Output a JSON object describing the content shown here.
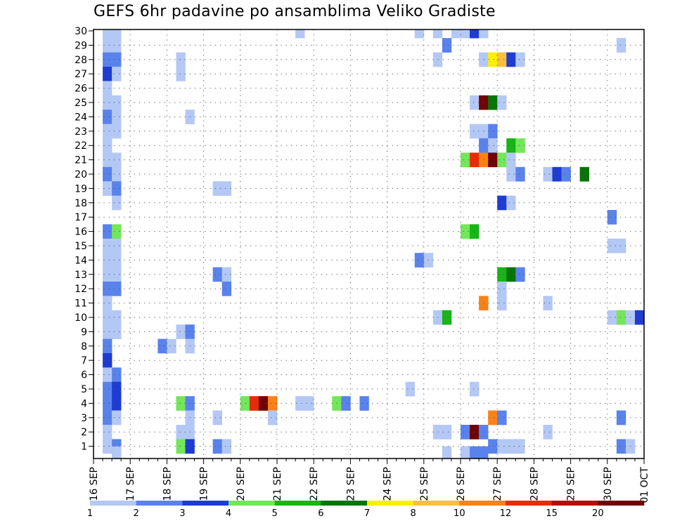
{
  "chart_data": {
    "type": "heatmap",
    "title": "GEFS 6hr padavine po ansamblima Veliko Gradiste",
    "xlabel": "",
    "ylabel": "",
    "x_tick_labels": [
      "16 SEP",
      "17 SEP",
      "18 SEP",
      "19 SEP",
      "20 SEP",
      "21 SEP",
      "22 SEP",
      "23 SEP",
      "24 SEP",
      "25 SEP",
      "26 SEP",
      "27 SEP",
      "28 SEP",
      "29 SEP",
      "30 SEP",
      "01 OCT"
    ],
    "y_tick_labels": [
      "1",
      "2",
      "3",
      "4",
      "5",
      "6",
      "7",
      "8",
      "9",
      "10",
      "11",
      "12",
      "13",
      "14",
      "15",
      "16",
      "17",
      "18",
      "19",
      "20",
      "21",
      "22",
      "23",
      "24",
      "25",
      "26",
      "27",
      "28",
      "29",
      "30"
    ],
    "x_range_days": [
      0,
      15
    ],
    "y_range": [
      0.5,
      30
    ],
    "grid": "dotted",
    "colorbar": {
      "labels": [
        "1",
        "2",
        "3",
        "4",
        "5",
        "6",
        "7",
        "8",
        "10",
        "12",
        "15",
        "20"
      ],
      "colors": [
        "#b4c8f5",
        "#5a82ec",
        "#1e3cd2",
        "#74e65a",
        "#18b418",
        "#087408",
        "#f8f000",
        "#f8c040",
        "#f88218",
        "#e82c08",
        "#b40c0c",
        "#6e0404"
      ]
    },
    "note_units": "mm per 6h; x = days since 16 SEP 00Z, width 0.25; y = ensemble member",
    "cells": [
      {
        "x": 0.25,
        "y": 30,
        "c": 0
      },
      {
        "x": 0.5,
        "y": 30,
        "c": 0
      },
      {
        "x": 5.5,
        "y": 30,
        "c": 0
      },
      {
        "x": 8.75,
        "y": 30,
        "c": 0
      },
      {
        "x": 9.25,
        "y": 30,
        "c": 0
      },
      {
        "x": 9.75,
        "y": 30,
        "c": 0
      },
      {
        "x": 10,
        "y": 30,
        "c": 0
      },
      {
        "x": 10.25,
        "y": 30,
        "c": 2
      },
      {
        "x": 10.5,
        "y": 30,
        "c": 0
      },
      {
        "x": 0.25,
        "y": 29,
        "c": 0
      },
      {
        "x": 0.5,
        "y": 29,
        "c": 0
      },
      {
        "x": 9.5,
        "y": 29,
        "c": 1
      },
      {
        "x": 14.25,
        "y": 29,
        "c": 0
      },
      {
        "x": 0.25,
        "y": 28,
        "c": 1
      },
      {
        "x": 0.5,
        "y": 28,
        "c": 1
      },
      {
        "x": 2.25,
        "y": 28,
        "c": 0
      },
      {
        "x": 9.25,
        "y": 28,
        "c": 0
      },
      {
        "x": 10.5,
        "y": 28,
        "c": 0
      },
      {
        "x": 10.75,
        "y": 28,
        "c": 6
      },
      {
        "x": 11,
        "y": 28,
        "c": 7
      },
      {
        "x": 11.25,
        "y": 28,
        "c": 2
      },
      {
        "x": 11.5,
        "y": 28,
        "c": 0
      },
      {
        "x": 0.25,
        "y": 27,
        "c": 2
      },
      {
        "x": 0.5,
        "y": 27,
        "c": 0
      },
      {
        "x": 2.25,
        "y": 27,
        "c": 0
      },
      {
        "x": 0.25,
        "y": 26,
        "c": 0
      },
      {
        "x": 0.25,
        "y": 25,
        "c": 0
      },
      {
        "x": 0.5,
        "y": 25,
        "c": 0
      },
      {
        "x": 10.25,
        "y": 25,
        "c": 0
      },
      {
        "x": 10.5,
        "y": 25,
        "c": 11
      },
      {
        "x": 10.75,
        "y": 25,
        "c": 5
      },
      {
        "x": 11,
        "y": 25,
        "c": 0
      },
      {
        "x": 0.25,
        "y": 24,
        "c": 1
      },
      {
        "x": 0.5,
        "y": 24,
        "c": 0
      },
      {
        "x": 2.5,
        "y": 24,
        "c": 0
      },
      {
        "x": 0.25,
        "y": 23,
        "c": 0
      },
      {
        "x": 0.5,
        "y": 23,
        "c": 0
      },
      {
        "x": 10.25,
        "y": 23,
        "c": 0
      },
      {
        "x": 10.5,
        "y": 23,
        "c": 0
      },
      {
        "x": 10.75,
        "y": 23,
        "c": 1
      },
      {
        "x": 0.25,
        "y": 22,
        "c": 0
      },
      {
        "x": 10.5,
        "y": 22,
        "c": 1
      },
      {
        "x": 10.75,
        "y": 22,
        "c": 0
      },
      {
        "x": 11.25,
        "y": 22,
        "c": 4
      },
      {
        "x": 11.5,
        "y": 22,
        "c": 3
      },
      {
        "x": 0.25,
        "y": 21,
        "c": 0
      },
      {
        "x": 0.5,
        "y": 21,
        "c": 0
      },
      {
        "x": 10,
        "y": 21,
        "c": 3
      },
      {
        "x": 10.25,
        "y": 21,
        "c": 9
      },
      {
        "x": 10.5,
        "y": 21,
        "c": 8
      },
      {
        "x": 10.75,
        "y": 21,
        "c": 11
      },
      {
        "x": 11,
        "y": 21,
        "c": 3
      },
      {
        "x": 11.25,
        "y": 21,
        "c": 0
      },
      {
        "x": 0.25,
        "y": 20,
        "c": 1
      },
      {
        "x": 0.5,
        "y": 20,
        "c": 0
      },
      {
        "x": 11.25,
        "y": 20,
        "c": 0
      },
      {
        "x": 11.5,
        "y": 20,
        "c": 1
      },
      {
        "x": 12.25,
        "y": 20,
        "c": 0
      },
      {
        "x": 12.5,
        "y": 20,
        "c": 2
      },
      {
        "x": 12.75,
        "y": 20,
        "c": 1
      },
      {
        "x": 13.25,
        "y": 20,
        "c": 5
      },
      {
        "x": 0.25,
        "y": 19,
        "c": 0
      },
      {
        "x": 0.5,
        "y": 19,
        "c": 1
      },
      {
        "x": 3.25,
        "y": 19,
        "c": 0
      },
      {
        "x": 3.5,
        "y": 19,
        "c": 0
      },
      {
        "x": 0.5,
        "y": 18,
        "c": 0
      },
      {
        "x": 11,
        "y": 18,
        "c": 2
      },
      {
        "x": 11.25,
        "y": 18,
        "c": 0
      },
      {
        "x": 14,
        "y": 17,
        "c": 1
      },
      {
        "x": 0.25,
        "y": 16,
        "c": 1
      },
      {
        "x": 0.5,
        "y": 16,
        "c": 3
      },
      {
        "x": 10,
        "y": 16,
        "c": 3
      },
      {
        "x": 10.25,
        "y": 16,
        "c": 4
      },
      {
        "x": 0.25,
        "y": 15,
        "c": 0
      },
      {
        "x": 0.5,
        "y": 15,
        "c": 0
      },
      {
        "x": 14,
        "y": 15,
        "c": 0
      },
      {
        "x": 14.25,
        "y": 15,
        "c": 0
      },
      {
        "x": 0.25,
        "y": 14,
        "c": 0
      },
      {
        "x": 0.5,
        "y": 14,
        "c": 0
      },
      {
        "x": 8.75,
        "y": 14,
        "c": 1
      },
      {
        "x": 9,
        "y": 14,
        "c": 0
      },
      {
        "x": 0.25,
        "y": 13,
        "c": 0
      },
      {
        "x": 0.5,
        "y": 13,
        "c": 0
      },
      {
        "x": 3.25,
        "y": 13,
        "c": 1
      },
      {
        "x": 3.5,
        "y": 13,
        "c": 0
      },
      {
        "x": 11,
        "y": 13,
        "c": 4
      },
      {
        "x": 11.25,
        "y": 13,
        "c": 5
      },
      {
        "x": 11.5,
        "y": 13,
        "c": 1
      },
      {
        "x": 0.25,
        "y": 12,
        "c": 1
      },
      {
        "x": 0.5,
        "y": 12,
        "c": 1
      },
      {
        "x": 3.5,
        "y": 12,
        "c": 1
      },
      {
        "x": 11,
        "y": 12,
        "c": 0
      },
      {
        "x": 0.25,
        "y": 11,
        "c": 0
      },
      {
        "x": 10.5,
        "y": 11,
        "c": 8
      },
      {
        "x": 11,
        "y": 11,
        "c": 0
      },
      {
        "x": 12.25,
        "y": 11,
        "c": 0
      },
      {
        "x": 0.25,
        "y": 10,
        "c": 0
      },
      {
        "x": 0.5,
        "y": 10,
        "c": 0
      },
      {
        "x": 9.25,
        "y": 10,
        "c": 0
      },
      {
        "x": 9.5,
        "y": 10,
        "c": 4
      },
      {
        "x": 14,
        "y": 10,
        "c": 0
      },
      {
        "x": 14.25,
        "y": 10,
        "c": 3
      },
      {
        "x": 14.5,
        "y": 10,
        "c": 0
      },
      {
        "x": 14.75,
        "y": 10,
        "c": 2
      },
      {
        "x": 0.25,
        "y": 9,
        "c": 0
      },
      {
        "x": 0.5,
        "y": 9,
        "c": 0
      },
      {
        "x": 2.25,
        "y": 9,
        "c": 0
      },
      {
        "x": 2.5,
        "y": 9,
        "c": 1
      },
      {
        "x": 0.25,
        "y": 8,
        "c": 1
      },
      {
        "x": 1.75,
        "y": 8,
        "c": 1
      },
      {
        "x": 2,
        "y": 8,
        "c": 0
      },
      {
        "x": 2.5,
        "y": 8,
        "c": 0
      },
      {
        "x": 0.25,
        "y": 7,
        "c": 2
      },
      {
        "x": 0.25,
        "y": 6,
        "c": 0
      },
      {
        "x": 0.5,
        "y": 6,
        "c": 1
      },
      {
        "x": 0.25,
        "y": 5,
        "c": 1
      },
      {
        "x": 0.5,
        "y": 5,
        "c": 2
      },
      {
        "x": 8.5,
        "y": 5,
        "c": 0
      },
      {
        "x": 10.25,
        "y": 5,
        "c": 0
      },
      {
        "x": 0.25,
        "y": 4,
        "c": 1
      },
      {
        "x": 0.5,
        "y": 4,
        "c": 2
      },
      {
        "x": 2.25,
        "y": 4,
        "c": 3
      },
      {
        "x": 2.5,
        "y": 4,
        "c": 1
      },
      {
        "x": 4,
        "y": 4,
        "c": 3
      },
      {
        "x": 4.25,
        "y": 4,
        "c": 9
      },
      {
        "x": 4.5,
        "y": 4,
        "c": 11
      },
      {
        "x": 4.75,
        "y": 4,
        "c": 8
      },
      {
        "x": 5.5,
        "y": 4,
        "c": 0
      },
      {
        "x": 5.75,
        "y": 4,
        "c": 0
      },
      {
        "x": 6.5,
        "y": 4,
        "c": 3
      },
      {
        "x": 6.75,
        "y": 4,
        "c": 1
      },
      {
        "x": 7.25,
        "y": 4,
        "c": 1
      },
      {
        "x": 0.25,
        "y": 3,
        "c": 1
      },
      {
        "x": 0.5,
        "y": 3,
        "c": 0
      },
      {
        "x": 2.5,
        "y": 3,
        "c": 0
      },
      {
        "x": 3.25,
        "y": 3,
        "c": 0
      },
      {
        "x": 4.75,
        "y": 3,
        "c": 0
      },
      {
        "x": 10.75,
        "y": 3,
        "c": 8
      },
      {
        "x": 11,
        "y": 3,
        "c": 1
      },
      {
        "x": 14.25,
        "y": 3,
        "c": 1
      },
      {
        "x": 0.25,
        "y": 2,
        "c": 0
      },
      {
        "x": 2.25,
        "y": 2,
        "c": 0
      },
      {
        "x": 2.5,
        "y": 2,
        "c": 0
      },
      {
        "x": 9.25,
        "y": 2,
        "c": 0
      },
      {
        "x": 9.5,
        "y": 2,
        "c": 0
      },
      {
        "x": 10,
        "y": 2,
        "c": 1
      },
      {
        "x": 10.25,
        "y": 2,
        "c": 11
      },
      {
        "x": 10.5,
        "y": 2,
        "c": 1
      },
      {
        "x": 12.25,
        "y": 2,
        "c": 0
      },
      {
        "x": 0.25,
        "y": 1,
        "c": 0
      },
      {
        "x": 0.5,
        "y": 1,
        "c": 1
      },
      {
        "x": 2.25,
        "y": 1,
        "c": 3
      },
      {
        "x": 2.5,
        "y": 1,
        "c": 2
      },
      {
        "x": 3.25,
        "y": 1,
        "c": 1
      },
      {
        "x": 3.5,
        "y": 1,
        "c": 0
      },
      {
        "x": 10.75,
        "y": 1,
        "c": 1
      },
      {
        "x": 11,
        "y": 1,
        "c": 0
      },
      {
        "x": 11.25,
        "y": 1,
        "c": 0
      },
      {
        "x": 11.5,
        "y": 1,
        "c": 0
      },
      {
        "x": 14.25,
        "y": 1,
        "c": 1
      },
      {
        "x": 14.5,
        "y": 1,
        "c": 0
      },
      {
        "x": 0.5,
        "y": 0.5,
        "c": 0
      },
      {
        "x": 9.5,
        "y": 0.5,
        "c": 0
      },
      {
        "x": 10,
        "y": 0.5,
        "c": 0
      },
      {
        "x": 10.25,
        "y": 0.5,
        "c": 1
      },
      {
        "x": 10.5,
        "y": 0.5,
        "c": 1
      }
    ]
  }
}
